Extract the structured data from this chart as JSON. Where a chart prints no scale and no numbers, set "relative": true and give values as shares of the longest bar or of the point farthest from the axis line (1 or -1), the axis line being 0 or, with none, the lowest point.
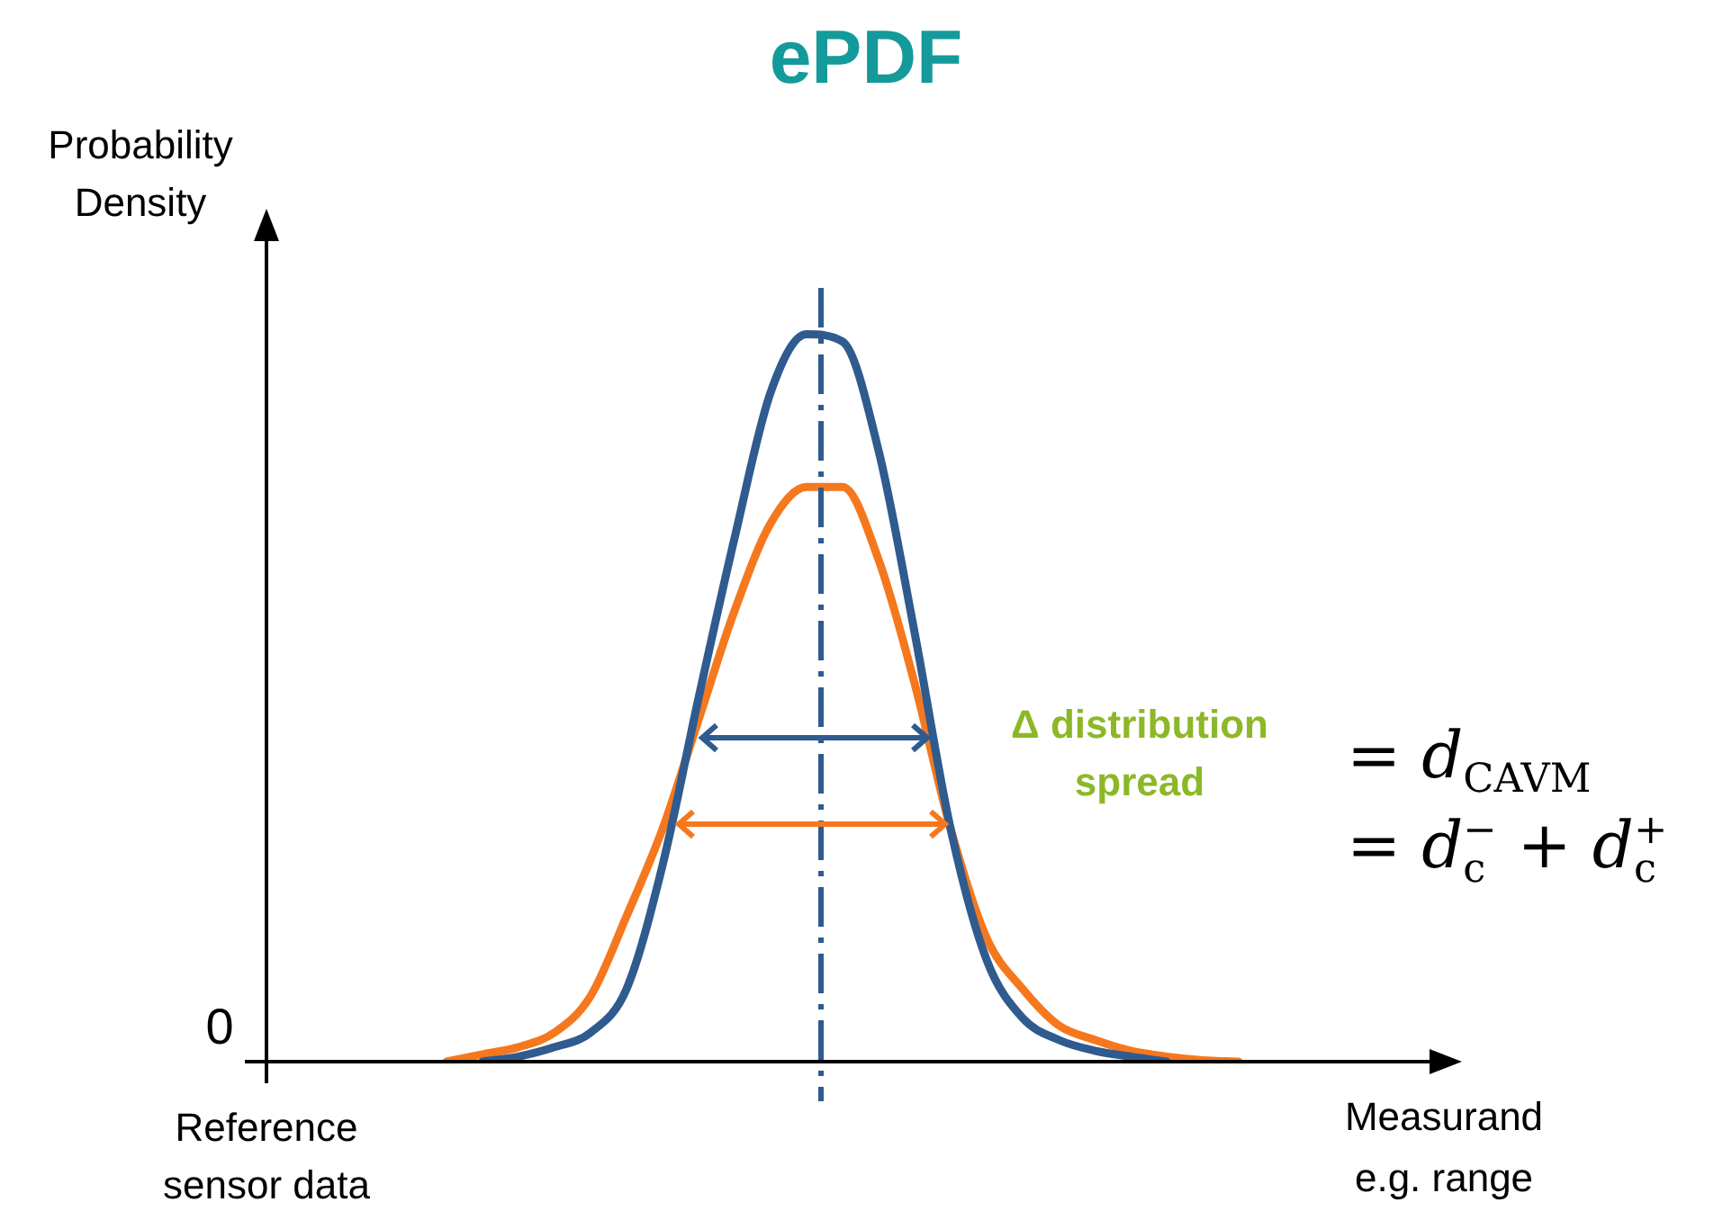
{
  "chart_data": {
    "type": "line",
    "title": "ePDF",
    "xlabel": "Measurand e.g. range",
    "ylabel": "Probability Density",
    "relative": true,
    "legend": false,
    "marker": "none",
    "line_style": "solid",
    "categories": [
      null,
      null,
      null,
      null,
      null,
      null,
      null,
      null,
      null,
      null,
      null,
      null,
      null,
      null,
      null,
      null,
      null,
      null,
      null,
      null,
      null,
      null,
      null,
      null,
      null,
      null,
      null,
      null,
      null,
      null,
      null,
      null,
      null,
      null
    ],
    "series": [
      {
        "color": "#2f5b8f",
        "values": [
          null,
          null,
          null,
          null,
          null,
          null,
          0,
          0.007,
          0.02,
          0.04,
          0.1,
          0.27,
          0.5,
          0.72,
          0.92,
          1,
          0.99,
          0.84,
          0.59,
          0.32,
          0.14,
          0.06,
          0.03,
          0.015,
          0.007,
          0,
          null,
          null,
          null,
          null,
          null,
          null,
          null,
          null
        ]
      },
      {
        "color": "#f5781e",
        "values": [
          null,
          null,
          null,
          null,
          null,
          0,
          0.01,
          0.02,
          0.04,
          0.09,
          0.2,
          0.32,
          0.47,
          0.62,
          0.74,
          0.79,
          0.79,
          0.69,
          0.52,
          0.32,
          0.17,
          0.1,
          0.05,
          0.03,
          0.015,
          0.007,
          0.002,
          0,
          null,
          null,
          null,
          null,
          null,
          null
        ]
      }
    ],
    "annotations": [
      "0",
      "Reference sensor data",
      "Δ distribution spread",
      "= d$_{CAVM}$",
      "= d$_{c}$$^{−}$ + d$_{c}$$^{+}$"
    ]
  }
}
